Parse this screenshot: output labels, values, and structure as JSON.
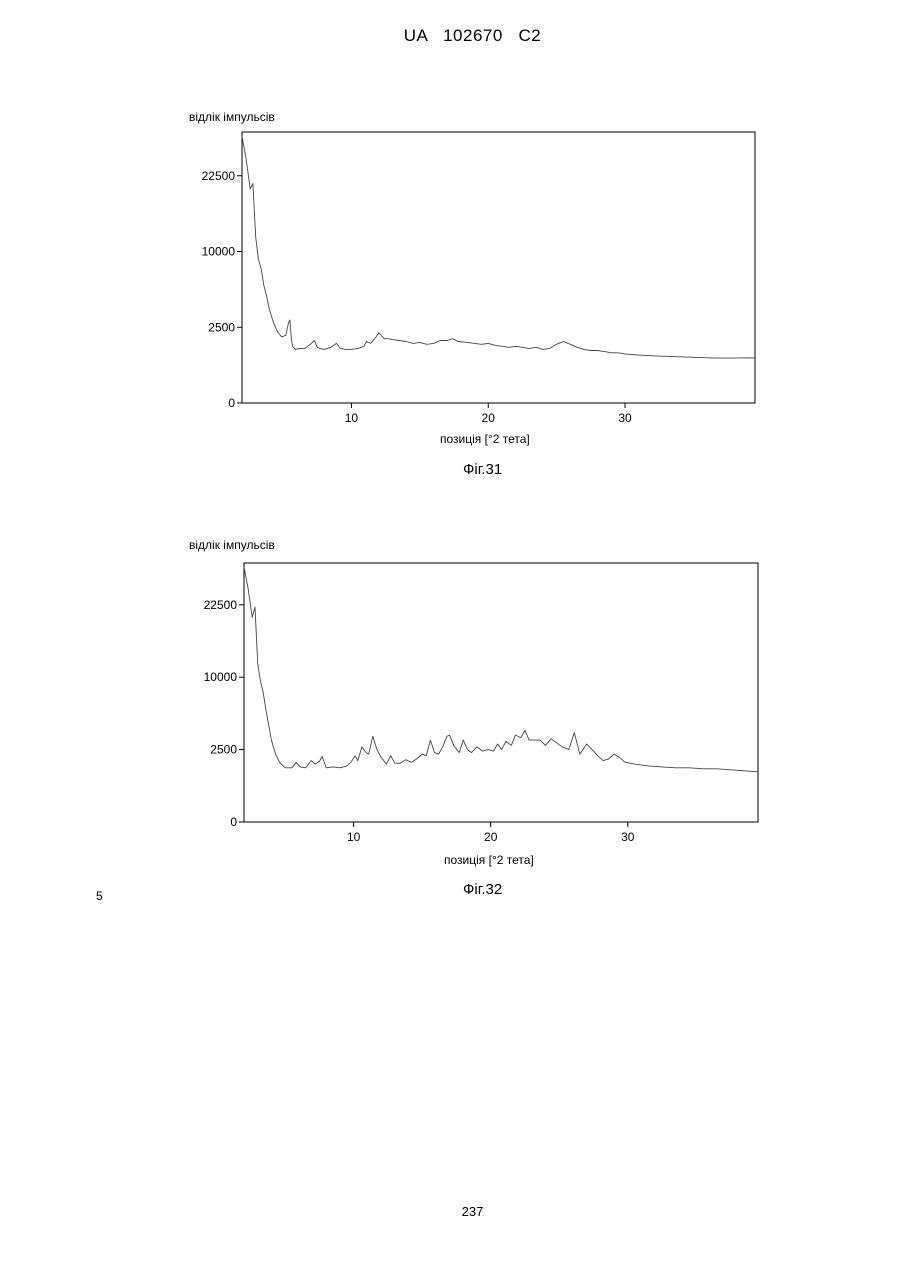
{
  "header": {
    "doc_id": "UA   102670   C2"
  },
  "line_number": "5",
  "page_number": "237",
  "chart_data": [
    {
      "type": "line",
      "caption": "Фіг.31",
      "ylabel": "відлік імпульсів",
      "xlabel": "позиція [°2 тета]",
      "y_scale": "sqrt",
      "ylim": [
        0,
        32000
      ],
      "xlim": [
        2,
        39.5
      ],
      "x_ticks": [
        10,
        20,
        30
      ],
      "y_ticks": [
        0,
        2500,
        10000,
        22500
      ],
      "line_color": "#444444",
      "series": [
        {
          "x": [
            2.0,
            2.3,
            2.6,
            2.8,
            3.0,
            3.2,
            3.4,
            3.6,
            3.8,
            4.0,
            4.3,
            4.6,
            4.9,
            5.2,
            5.4,
            5.5,
            5.6,
            5.7,
            5.9,
            6.2,
            6.6,
            7.0,
            7.3,
            7.5,
            7.7,
            8.0,
            8.5,
            8.9,
            9.2,
            9.6,
            10.0,
            10.5,
            10.9,
            11.1,
            11.4,
            11.8,
            12.0,
            12.4,
            12.7,
            13.0,
            13.5,
            14.0,
            14.5,
            15.0,
            15.5,
            16.0,
            16.5,
            17.0,
            17.4,
            17.8,
            18.5,
            19.0,
            19.5,
            20.0,
            20.5,
            21.0,
            21.5,
            22.0,
            22.5,
            23.0,
            23.5,
            24.0,
            24.5,
            25.0,
            25.5,
            26.0,
            26.5,
            27.0,
            27.5,
            28.0,
            28.5,
            29.0,
            29.5,
            30.0,
            31.0,
            32.0,
            33.0,
            34.0,
            35.0,
            36.0,
            37.0,
            38.0,
            39.0,
            39.5
          ],
          "y": [
            31000,
            26000,
            20000,
            21000,
            12000,
            9000,
            7800,
            6000,
            5000,
            3800,
            2800,
            2200,
            1900,
            2000,
            2800,
            3000,
            1900,
            1400,
            1250,
            1300,
            1300,
            1500,
            1700,
            1350,
            1300,
            1250,
            1350,
            1550,
            1300,
            1250,
            1250,
            1300,
            1400,
            1650,
            1550,
            1900,
            2150,
            1800,
            1800,
            1750,
            1700,
            1650,
            1550,
            1600,
            1500,
            1550,
            1700,
            1700,
            1800,
            1650,
            1600,
            1550,
            1500,
            1550,
            1450,
            1400,
            1350,
            1400,
            1350,
            1300,
            1350,
            1250,
            1300,
            1500,
            1650,
            1500,
            1350,
            1250,
            1200,
            1200,
            1150,
            1100,
            1100,
            1050,
            1000,
            970,
            950,
            930,
            910,
            890,
            880,
            880,
            890,
            880
          ]
        }
      ]
    },
    {
      "type": "line",
      "caption": "Фіг.32",
      "ylabel": "відлік імпульсів",
      "xlabel": "позиція [°2 тета]",
      "y_scale": "sqrt",
      "ylim": [
        0,
        32000
      ],
      "xlim": [
        2,
        39.5
      ],
      "x_ticks": [
        10,
        20,
        30
      ],
      "y_ticks": [
        0,
        2500,
        10000,
        22500
      ],
      "line_color": "#444444",
      "series": [
        {
          "x": [
            2.0,
            2.3,
            2.6,
            2.8,
            3.0,
            3.2,
            3.4,
            3.6,
            3.8,
            4.0,
            4.3,
            4.6,
            5.0,
            5.5,
            5.8,
            6.1,
            6.5,
            6.9,
            7.2,
            7.5,
            7.7,
            8.0,
            8.5,
            9.0,
            9.5,
            9.8,
            10.1,
            10.3,
            10.6,
            10.9,
            11.1,
            11.4,
            11.7,
            12.0,
            12.4,
            12.7,
            13.0,
            13.4,
            13.8,
            14.2,
            14.6,
            15.0,
            15.3,
            15.6,
            15.9,
            16.2,
            16.5,
            16.8,
            17.0,
            17.3,
            17.7,
            18.0,
            18.3,
            18.6,
            19.0,
            19.4,
            19.8,
            20.2,
            20.5,
            20.8,
            21.1,
            21.5,
            21.8,
            22.2,
            22.5,
            22.8,
            23.2,
            23.6,
            24.0,
            24.4,
            24.8,
            25.2,
            25.7,
            26.1,
            26.5,
            27.0,
            27.4,
            27.8,
            28.2,
            28.6,
            29.0,
            29.4,
            29.8,
            30.5,
            31.5,
            32.5,
            33.5,
            34.5,
            35.5,
            36.5,
            37.5,
            38.5,
            39.5
          ],
          "y": [
            31000,
            26000,
            20000,
            22000,
            12000,
            9500,
            8000,
            6000,
            4500,
            3200,
            2200,
            1700,
            1400,
            1400,
            1700,
            1450,
            1400,
            1800,
            1600,
            1750,
            2050,
            1400,
            1450,
            1400,
            1500,
            1700,
            2100,
            1800,
            2700,
            2300,
            2200,
            3500,
            2500,
            2000,
            1600,
            2100,
            1650,
            1650,
            1850,
            1700,
            1900,
            2200,
            2100,
            3200,
            2300,
            2200,
            2700,
            3500,
            3600,
            2800,
            2300,
            3200,
            2500,
            2300,
            2700,
            2400,
            2500,
            2400,
            2900,
            2500,
            3100,
            2800,
            3600,
            3400,
            4000,
            3200,
            3200,
            3200,
            2800,
            3300,
            3000,
            2700,
            2500,
            3800,
            2200,
            2900,
            2500,
            2100,
            1800,
            1900,
            2200,
            2000,
            1700,
            1600,
            1500,
            1450,
            1400,
            1400,
            1350,
            1350,
            1300,
            1250,
            1200
          ]
        }
      ]
    }
  ]
}
